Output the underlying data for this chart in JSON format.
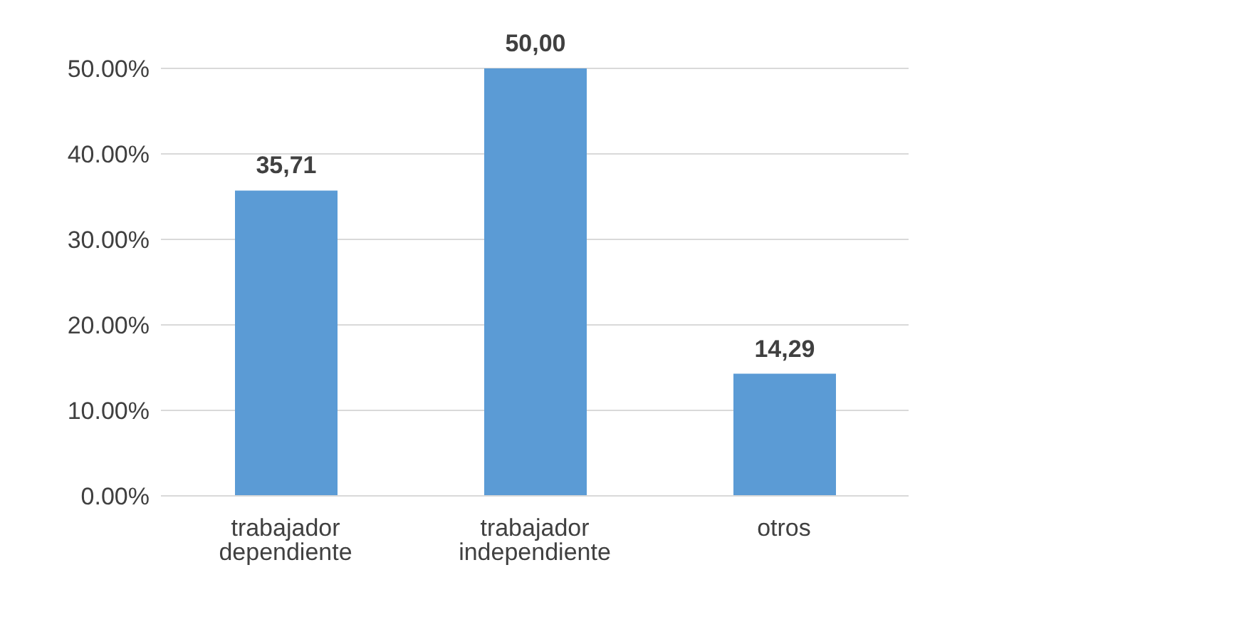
{
  "chart_data": {
    "type": "bar",
    "categories": [
      "trabajador dependiente",
      "trabajador independiente",
      "otros"
    ],
    "values": [
      35.71,
      50,
      14.29
    ],
    "value_labels": [
      "35,71",
      "50,00",
      "14,29"
    ],
    "color": "#5b9bd5",
    "ylim": [
      0,
      50
    ],
    "yticks": [
      {
        "value": 0,
        "label": "0.00%"
      },
      {
        "value": 10,
        "label": "10.00%"
      },
      {
        "value": 20,
        "label": "20.00%"
      },
      {
        "value": 30,
        "label": "30.00%"
      },
      {
        "value": 40,
        "label": "40.00%"
      },
      {
        "value": 50,
        "label": "50.00%"
      }
    ],
    "grid": "y",
    "legend": false
  }
}
